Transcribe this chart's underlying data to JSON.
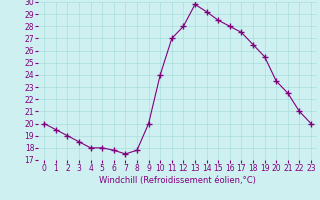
{
  "x": [
    0,
    1,
    2,
    3,
    4,
    5,
    6,
    7,
    8,
    9,
    10,
    11,
    12,
    13,
    14,
    15,
    16,
    17,
    18,
    19,
    20,
    21,
    22,
    23
  ],
  "y": [
    20.0,
    19.5,
    19.0,
    18.5,
    18.0,
    18.0,
    17.8,
    17.5,
    17.8,
    20.0,
    24.0,
    27.0,
    28.0,
    29.8,
    29.2,
    28.5,
    28.0,
    27.5,
    26.5,
    25.5,
    23.5,
    22.5,
    21.0,
    20.0
  ],
  "line_color": "#800080",
  "marker": "+",
  "marker_size": 4,
  "xlabel": "Windchill (Refroidissement éolien,°C)",
  "xlim": [
    -0.5,
    23.5
  ],
  "ylim": [
    17,
    30
  ],
  "yticks": [
    17,
    18,
    19,
    20,
    21,
    22,
    23,
    24,
    25,
    26,
    27,
    28,
    29,
    30
  ],
  "xticks": [
    0,
    1,
    2,
    3,
    4,
    5,
    6,
    7,
    8,
    9,
    10,
    11,
    12,
    13,
    14,
    15,
    16,
    17,
    18,
    19,
    20,
    21,
    22,
    23
  ],
  "bg_color": "#cff0f0",
  "grid_color": "#aadddd",
  "tick_label_color": "#800080",
  "axis_label_color": "#800080",
  "tick_fontsize": 5.5,
  "xlabel_fontsize": 6.0
}
